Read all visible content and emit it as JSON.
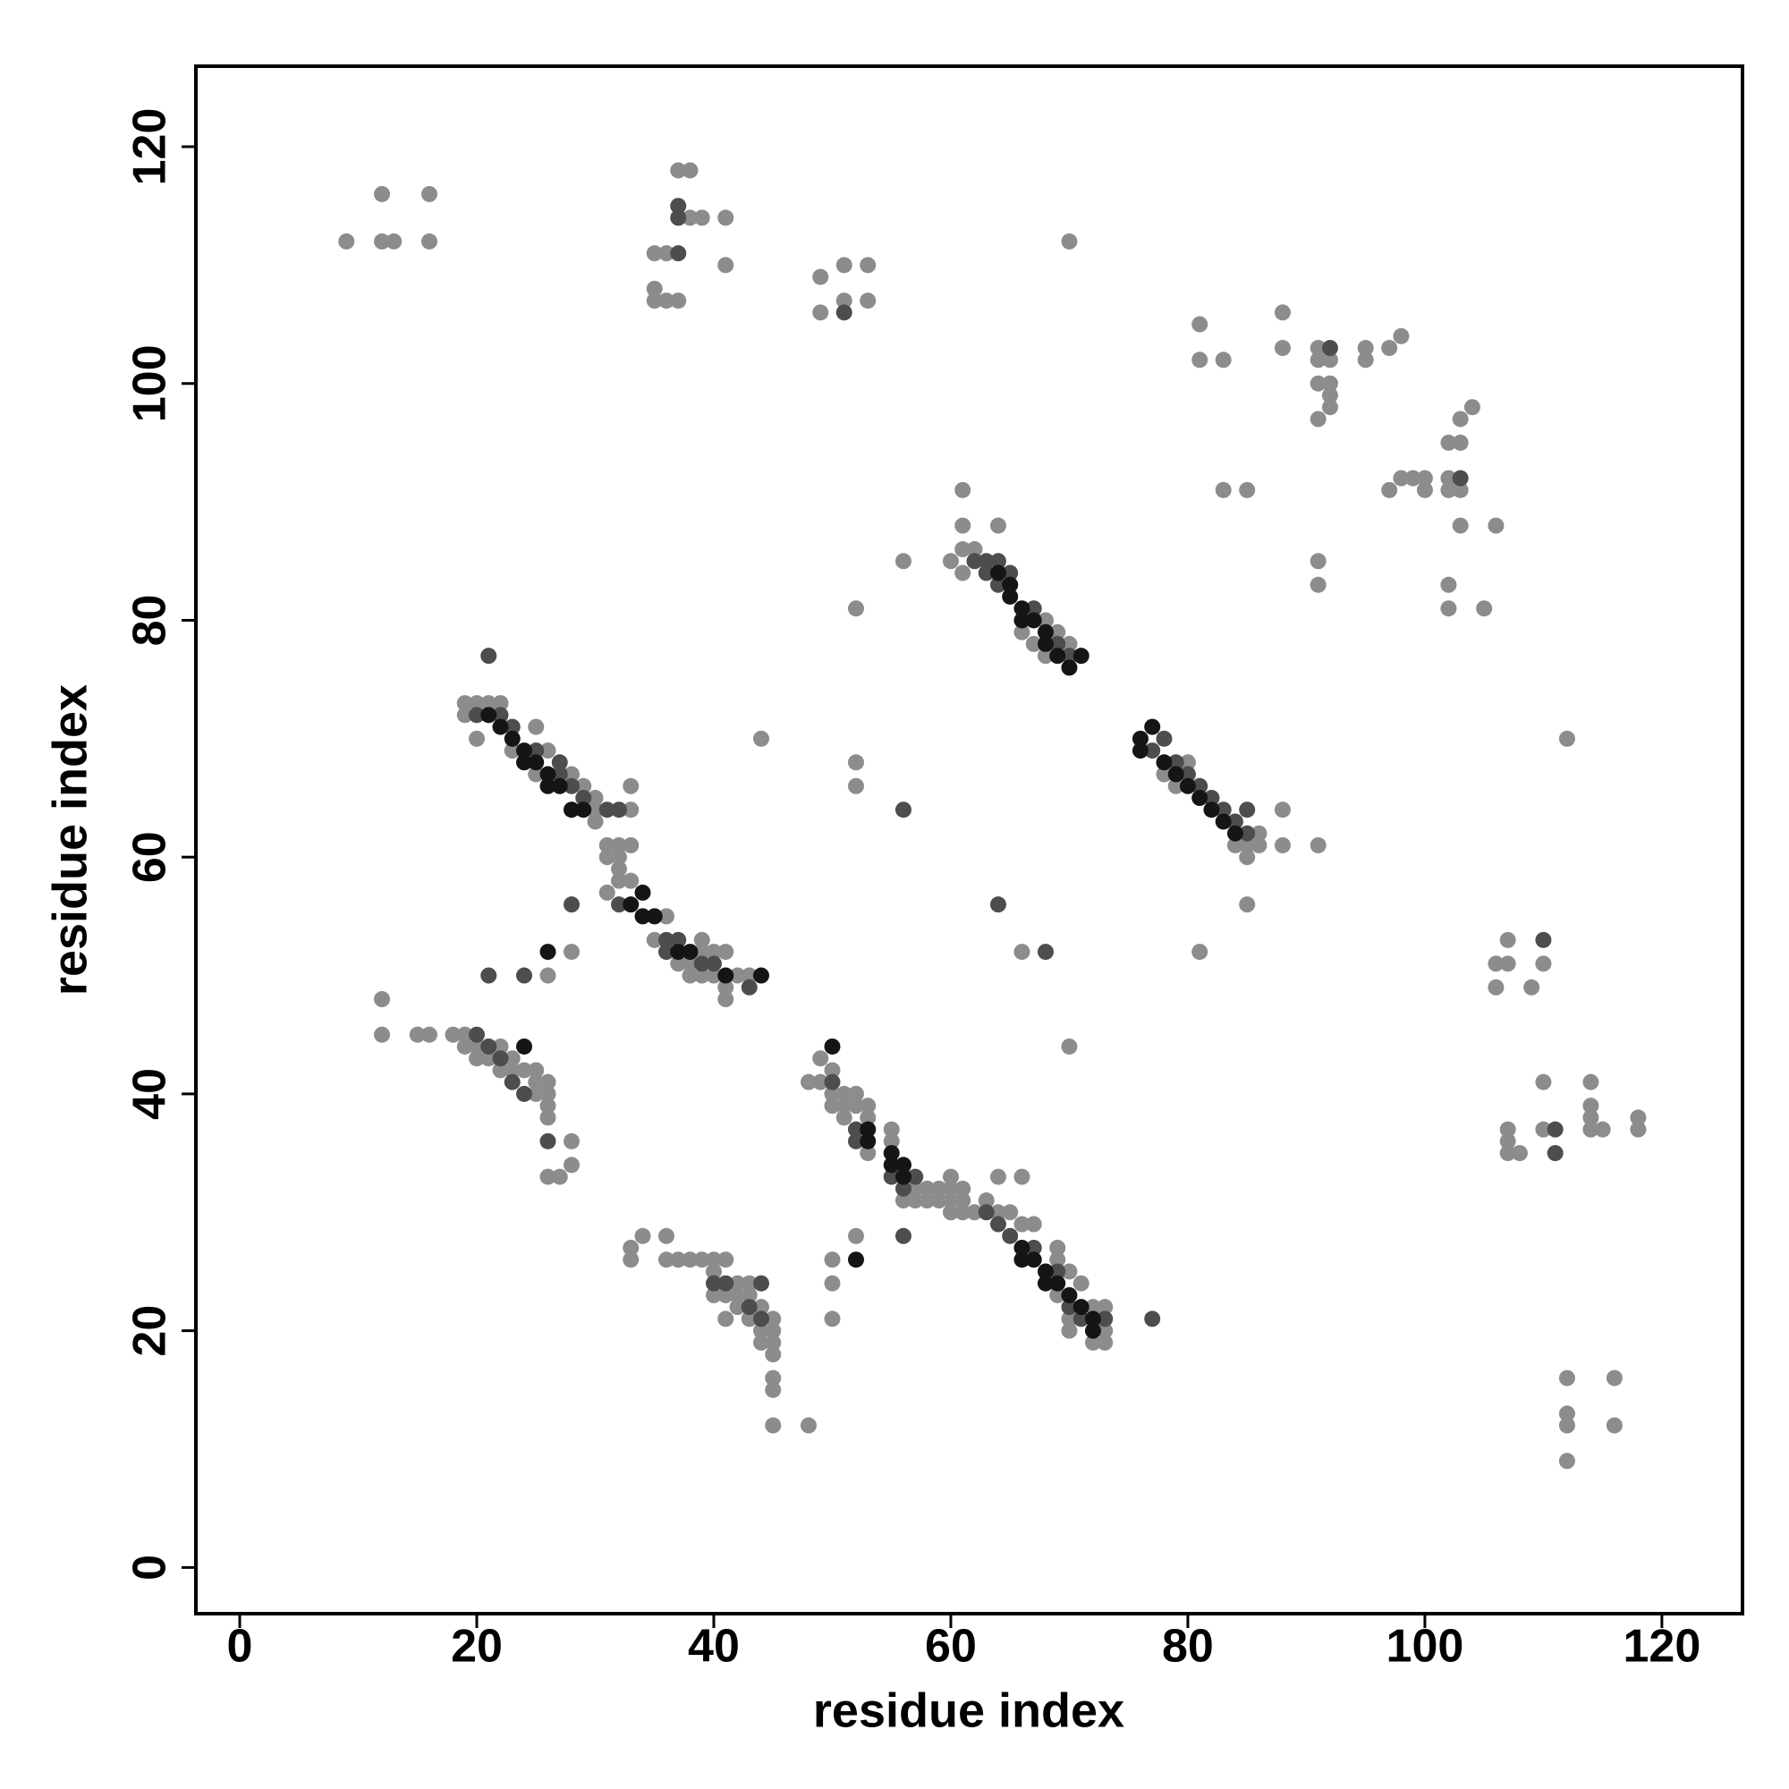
{
  "chart_data": {
    "type": "scatter",
    "xlabel": "residue index",
    "ylabel": "residue index",
    "xlim": [
      -3.7,
      126.8
    ],
    "ylim": [
      -3.9,
      126.8
    ],
    "xticks": [
      0,
      20,
      40,
      60,
      80,
      100,
      120
    ],
    "yticks": [
      0,
      20,
      40,
      60,
      80,
      100,
      120
    ],
    "grid": false,
    "series": [
      {
        "color": "#8c8c8c",
        "x": [
          9,
          12,
          12,
          13,
          16,
          16,
          35,
          36,
          35,
          35,
          36,
          37,
          37,
          38,
          38,
          39,
          41,
          41,
          49,
          49,
          51,
          51,
          53,
          53,
          70,
          81,
          81,
          83,
          88,
          88,
          91,
          91,
          92,
          91,
          92,
          92,
          92,
          91,
          95,
          95,
          97,
          98,
          97,
          98,
          99,
          100,
          100,
          102,
          102,
          103,
          102,
          103,
          103,
          104,
          103,
          106,
          102,
          102,
          105,
          91,
          91,
          83,
          85,
          61,
          61,
          64,
          60,
          61,
          62,
          61,
          56,
          52,
          66,
          67,
          68,
          69,
          70,
          68,
          44,
          52,
          52,
          19,
          19,
          20,
          20,
          21,
          22,
          23,
          25,
          25,
          26,
          28,
          29,
          30,
          30,
          30,
          33,
          33,
          31,
          32,
          33,
          31,
          32,
          32,
          32,
          31,
          33,
          35,
          37,
          38,
          38,
          39,
          39,
          39,
          40,
          40,
          41,
          41,
          41,
          42,
          43,
          36,
          28,
          26,
          78,
          79,
          80,
          84,
          85,
          85,
          86,
          86,
          88,
          88,
          91,
          85,
          81,
          66,
          70,
          12,
          12,
          15,
          16,
          18,
          19,
          19,
          20,
          20,
          21,
          22,
          22,
          23,
          23,
          24,
          25,
          25,
          25,
          26,
          26,
          26,
          26,
          26,
          27,
          28,
          28,
          48,
          49,
          49,
          50,
          50,
          50,
          51,
          51,
          51,
          52,
          52,
          53,
          53,
          53,
          55,
          55,
          56,
          57,
          57,
          58,
          58,
          59,
          59,
          60,
          60,
          60,
          60,
          61,
          61,
          61,
          62,
          64,
          66,
          63,
          64,
          65,
          66,
          67,
          69,
          69,
          70,
          70,
          70,
          71,
          72,
          73,
          73,
          73,
          72,
          69,
          33,
          33,
          34,
          36,
          36,
          37,
          38,
          39,
          40,
          40,
          40,
          41,
          41,
          41,
          42,
          42,
          42,
          43,
          43,
          43,
          44,
          44,
          44,
          45,
          45,
          45,
          45,
          45,
          45,
          45,
          48,
          50,
          50,
          50,
          52,
          106,
          106,
          107,
          107,
          109,
          110,
          110,
          107,
          107,
          107,
          108,
          110,
          112,
          114,
          114,
          114,
          114,
          115,
          118,
          118,
          112,
          112,
          112,
          112,
          116,
          116
        ],
        "values": [
          112,
          116,
          112,
          112,
          116,
          112,
          111,
          111,
          108,
          107,
          107,
          107,
          118,
          118,
          114,
          114,
          114,
          110,
          109,
          106,
          110,
          107,
          110,
          107,
          112,
          105,
          102,
          102,
          106,
          103,
          103,
          102,
          102,
          100,
          100,
          99,
          98,
          97,
          103,
          102,
          103,
          104,
          91,
          92,
          92,
          92,
          91,
          92,
          91,
          91,
          95,
          95,
          97,
          98,
          88,
          88,
          83,
          81,
          81,
          85,
          83,
          91,
          91,
          91,
          88,
          88,
          85,
          86,
          86,
          84,
          85,
          81,
          79,
          78,
          77,
          79,
          78,
          80,
          70,
          68,
          66,
          73,
          72,
          73,
          70,
          73,
          73,
          69,
          71,
          67,
          69,
          67,
          66,
          65,
          64,
          63,
          66,
          64,
          61,
          61,
          61,
          60,
          60,
          59,
          58,
          57,
          58,
          53,
          51,
          51,
          50,
          53,
          52,
          50,
          52,
          50,
          52,
          49,
          48,
          50,
          50,
          55,
          52,
          50,
          67,
          66,
          68,
          61,
          61,
          60,
          62,
          61,
          64,
          61,
          61,
          56,
          52,
          52,
          44,
          48,
          45,
          45,
          45,
          45,
          45,
          44,
          44,
          43,
          43,
          44,
          42,
          43,
          42,
          42,
          42,
          41,
          40,
          41,
          40,
          39,
          38,
          33,
          33,
          36,
          34,
          41,
          43,
          41,
          42,
          40,
          39,
          40,
          39,
          38,
          39,
          40,
          39,
          38,
          35,
          37,
          36,
          31,
          32,
          31,
          32,
          31,
          32,
          31,
          33,
          32,
          31,
          30,
          32,
          31,
          30,
          30,
          33,
          33,
          31,
          30,
          30,
          29,
          29,
          27,
          26,
          25,
          21,
          20,
          24,
          22,
          22,
          20,
          19,
          19,
          23,
          27,
          26,
          28,
          28,
          26,
          26,
          26,
          26,
          26,
          25,
          23,
          26,
          23,
          21,
          24,
          23,
          22,
          24,
          23,
          21,
          22,
          20,
          19,
          21,
          20,
          19,
          18,
          16,
          15,
          12,
          12,
          26,
          24,
          21,
          28,
          51,
          49,
          53,
          51,
          49,
          51,
          41,
          37,
          36,
          35,
          35,
          37,
          70,
          41,
          39,
          38,
          37,
          37,
          38,
          37,
          16,
          13,
          12,
          9,
          16,
          12
        ]
      },
      {
        "color": "#4d4d4d",
        "x": [
          20,
          22,
          23,
          25,
          27,
          27,
          28,
          29,
          31,
          32,
          32,
          36,
          36,
          37,
          39,
          40,
          43,
          62,
          63,
          63,
          64,
          64,
          65,
          67,
          69,
          70,
          77,
          78,
          79,
          80,
          81,
          82,
          83,
          84,
          85,
          85,
          20,
          21,
          22,
          23,
          24,
          52,
          52,
          55,
          56,
          57,
          63,
          64,
          65,
          67,
          69,
          70,
          71,
          73,
          40,
          41,
          44,
          44,
          43,
          37,
          37,
          37,
          51,
          92,
          103,
          21,
          56,
          64,
          68,
          111,
          110,
          111,
          21,
          24,
          28,
          77,
          56,
          50,
          26
        ],
        "values": [
          72,
          72,
          71,
          69,
          68,
          67,
          66,
          65,
          64,
          64,
          56,
          53,
          52,
          53,
          51,
          51,
          49,
          85,
          85,
          84,
          85,
          83,
          84,
          81,
          78,
          77,
          69,
          70,
          68,
          67,
          66,
          65,
          64,
          63,
          64,
          62,
          45,
          44,
          43,
          41,
          40,
          37,
          36,
          33,
          32,
          33,
          30,
          29,
          28,
          27,
          25,
          22,
          21,
          21,
          24,
          24,
          24,
          21,
          22,
          111,
          114,
          115,
          106,
          103,
          92,
          77,
          64,
          56,
          52,
          37,
          53,
          35,
          50,
          50,
          56,
          21,
          28,
          41,
          36
        ]
      },
      {
        "color": "#151515",
        "x": [
          21,
          22,
          23,
          24,
          24,
          25,
          26,
          26,
          27,
          28,
          29,
          33,
          34,
          34,
          35,
          37,
          38,
          41,
          44,
          64,
          65,
          65,
          66,
          66,
          67,
          68,
          68,
          69,
          70,
          71,
          76,
          76,
          77,
          78,
          79,
          80,
          81,
          82,
          83,
          84,
          50,
          53,
          53,
          55,
          55,
          56,
          56,
          66,
          66,
          67,
          68,
          68,
          69,
          70,
          71,
          72,
          72,
          26,
          52,
          24
        ],
        "values": [
          72,
          71,
          70,
          69,
          68,
          68,
          67,
          66,
          66,
          64,
          64,
          56,
          57,
          55,
          55,
          52,
          52,
          50,
          50,
          84,
          83,
          82,
          81,
          80,
          80,
          79,
          78,
          77,
          76,
          77,
          70,
          69,
          71,
          68,
          67,
          66,
          65,
          64,
          63,
          62,
          44,
          37,
          36,
          35,
          34,
          33,
          34,
          27,
          26,
          26,
          25,
          24,
          24,
          23,
          22,
          21,
          20,
          52,
          26,
          44
        ]
      }
    ]
  }
}
